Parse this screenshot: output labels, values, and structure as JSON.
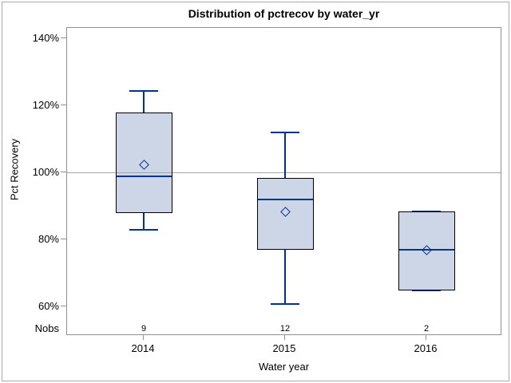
{
  "chart_data": {
    "type": "box",
    "title": "Distribution of pctrecov by water_yr",
    "xlabel": "Water year",
    "ylabel": "Pct Recovery",
    "nobs_label": "Nobs",
    "categories": [
      "2014",
      "2015",
      "2016"
    ],
    "y_ticks": [
      {
        "value": 140,
        "label": "140%"
      },
      {
        "value": 120,
        "label": "120%"
      },
      {
        "value": 100,
        "label": "100%"
      },
      {
        "value": 80,
        "label": "80%"
      },
      {
        "value": 60,
        "label": "60%"
      }
    ],
    "ylim": [
      51,
      143
    ],
    "refline_value": 100,
    "legend": "none",
    "grid": "off",
    "groups": [
      {
        "category": "2014",
        "nobs": 9,
        "whisker_low": 83,
        "q1": 88,
        "median": 99,
        "q3": 118,
        "whisker_high": 124.5,
        "mean": 102.5
      },
      {
        "category": "2015",
        "nobs": 12,
        "whisker_low": 61,
        "q1": 77,
        "median": 92,
        "q3": 98.5,
        "whisker_high": 112,
        "mean": 88.5
      },
      {
        "category": "2016",
        "nobs": 2,
        "whisker_low": 65,
        "q1": 65,
        "median": 77,
        "q3": 88.5,
        "whisker_high": 88.5,
        "mean": 77
      }
    ],
    "colors": {
      "box_fill": "#cdd6e7",
      "box_border": "#000000",
      "line": "#00338f",
      "axis": "#909090",
      "refline": "#a6a6a6",
      "background": "#ffffff",
      "text": "#000000"
    }
  }
}
